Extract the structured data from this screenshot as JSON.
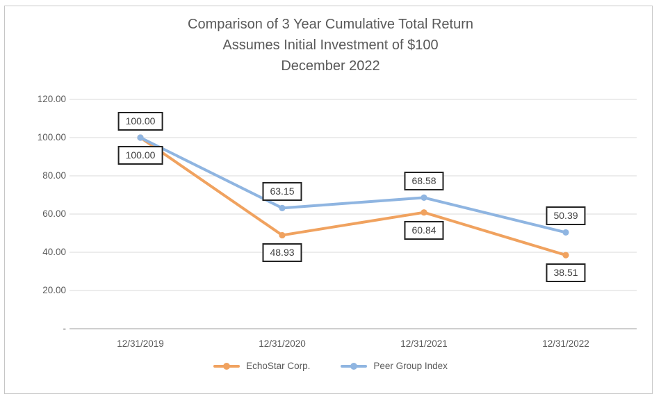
{
  "chart_data": {
    "type": "line",
    "title": "Comparison of 3 Year Cumulative Total Return",
    "title_lines": [
      "Comparison of 3 Year Cumulative Total Return",
      "Assumes Initial Investment of $100",
      "December 2022"
    ],
    "categories": [
      "12/31/2019",
      "12/31/2020",
      "12/31/2021",
      "12/31/2022"
    ],
    "series": [
      {
        "name": "EchoStar Corp.",
        "color": "#F0A25F",
        "values": [
          100.0,
          48.93,
          60.84,
          38.51
        ],
        "data_labels": [
          "100.00",
          "48.93",
          "60.84",
          "38.51"
        ],
        "data_label_position": "below"
      },
      {
        "name": "Peer Group Index",
        "color": "#8FB5E1",
        "values": [
          100.0,
          63.15,
          68.58,
          50.39
        ],
        "data_labels": [
          "100.00",
          "63.15",
          "68.58",
          "50.39"
        ],
        "data_label_position": "above"
      }
    ],
    "y_axis": {
      "tick_labels": [
        "120.00",
        "100.00",
        "80.00",
        "60.00",
        "40.00",
        "20.00",
        "-"
      ],
      "tick_values": [
        120,
        100,
        80,
        60,
        40,
        20,
        0
      ],
      "min": 0,
      "max": 120
    },
    "xlabel": "",
    "ylabel": "",
    "grid": true,
    "legend_position": "bottom",
    "data_label_decimals": 2,
    "colors": {
      "grid": "#D9D9D9",
      "axis_line": "#BFBFBF",
      "axis_text": "#595959",
      "title_text": "#595959",
      "label_box_border": "#222222",
      "label_box_text": "#3F3F3F",
      "frame_border": "#C6C6C6",
      "background": "#FFFFFF"
    }
  }
}
